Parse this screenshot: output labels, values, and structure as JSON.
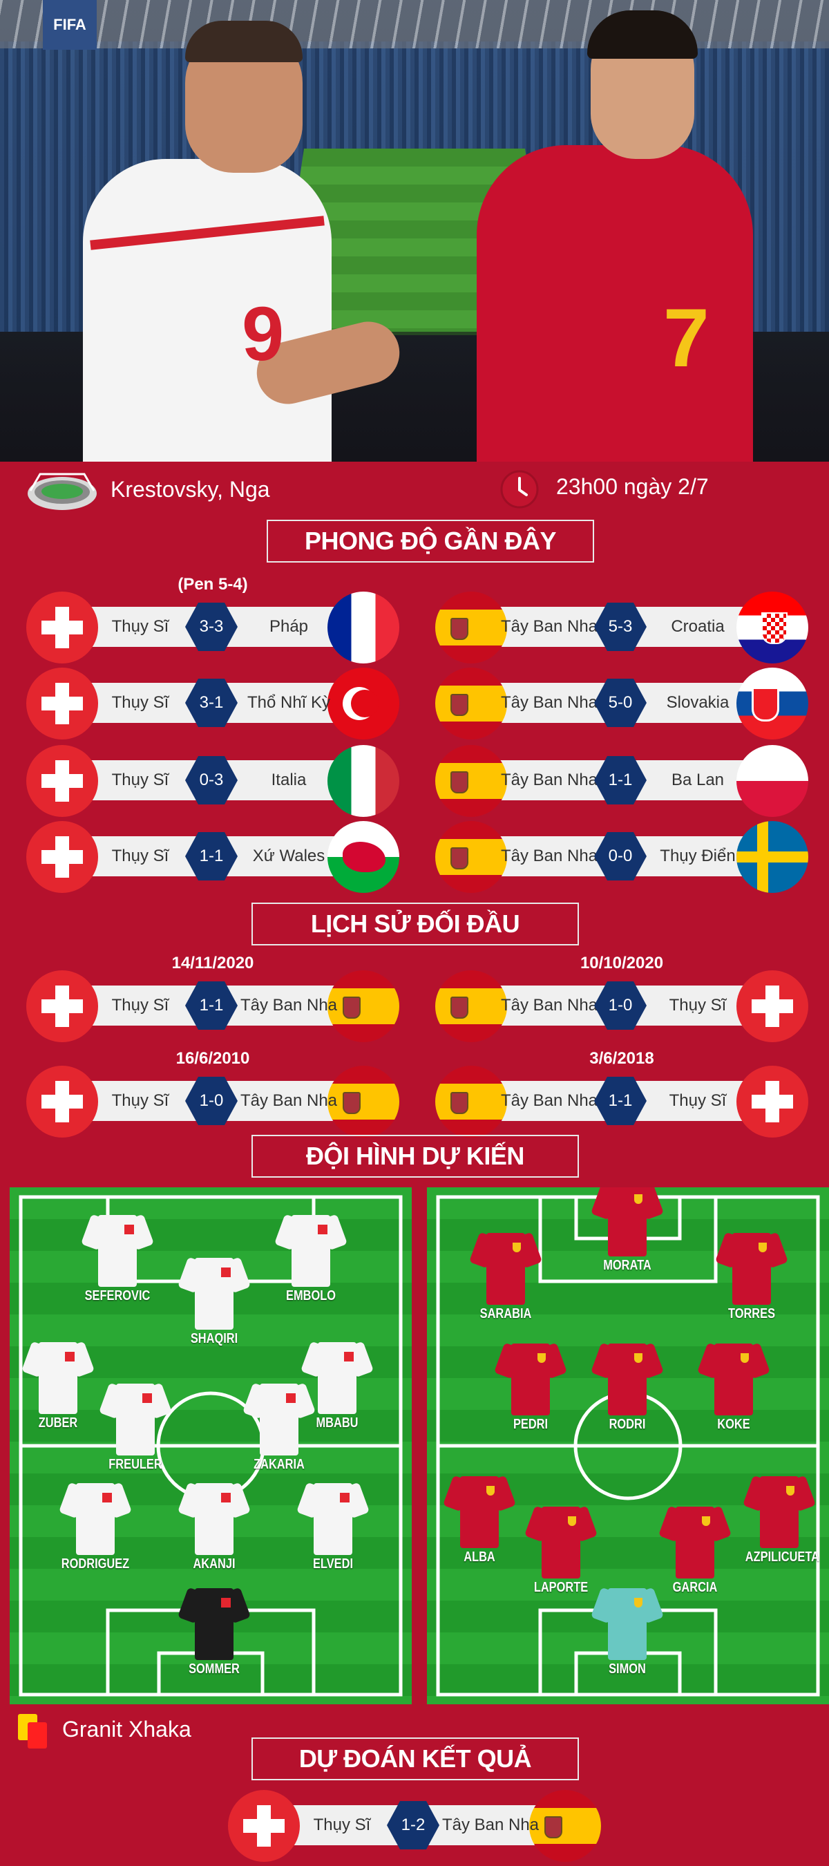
{
  "hero": {
    "badge_text": "FIFA",
    "left_shirt_number": "9",
    "right_shirt_number": "7"
  },
  "info": {
    "venue": "Krestovsky, Nga",
    "kickoff": "23h00 ngày 2/7"
  },
  "sections": {
    "form": "PHONG ĐỘ GẦN ĐÂY",
    "h2h": "LỊCH SỬ ĐỐI ĐẦU",
    "lineup": "ĐỘI HÌNH DỰ KIẾN",
    "prediction": "DỰ ĐOÁN KẾT QUẢ"
  },
  "recent_form": {
    "switzerland": [
      {
        "note": "(Pen 5-4)",
        "home": "Thụy Sĩ",
        "score": "3-3",
        "away": "Pháp",
        "home_flag": "sui",
        "away_flag": "fra"
      },
      {
        "note": "",
        "home": "Thụy Sĩ",
        "score": "3-1",
        "away": "Thổ Nhĩ Kỳ",
        "home_flag": "sui",
        "away_flag": "tur"
      },
      {
        "note": "",
        "home": "Thụy Sĩ",
        "score": "0-3",
        "away": "Italia",
        "home_flag": "sui",
        "away_flag": "ita"
      },
      {
        "note": "",
        "home": "Thụy Sĩ",
        "score": "1-1",
        "away": "Xứ Wales",
        "home_flag": "sui",
        "away_flag": "wal"
      }
    ],
    "spain": [
      {
        "note": "",
        "home": "Tây Ban Nha",
        "score": "5-3",
        "away": "Croatia",
        "home_flag": "esp",
        "away_flag": "cro"
      },
      {
        "note": "",
        "home": "Tây Ban Nha",
        "score": "5-0",
        "away": "Slovakia",
        "home_flag": "esp",
        "away_flag": "svk"
      },
      {
        "note": "",
        "home": "Tây Ban Nha",
        "score": "1-1",
        "away": "Ba Lan",
        "home_flag": "esp",
        "away_flag": "pol"
      },
      {
        "note": "",
        "home": "Tây Ban Nha",
        "score": "0-0",
        "away": "Thụy Điển",
        "home_flag": "esp",
        "away_flag": "swe"
      }
    ]
  },
  "head_to_head": [
    {
      "date": "14/11/2020",
      "home": "Thụy Sĩ",
      "score": "1-1",
      "away": "Tây Ban Nha",
      "home_flag": "sui",
      "away_flag": "esp"
    },
    {
      "date": "10/10/2020",
      "home": "Tây Ban Nha",
      "score": "1-0",
      "away": "Thụy Sĩ",
      "home_flag": "esp",
      "away_flag": "sui"
    },
    {
      "date": "16/6/2010",
      "home": "Thụy Sĩ",
      "score": "1-0",
      "away": "Tây Ban Nha",
      "home_flag": "sui",
      "away_flag": "esp"
    },
    {
      "date": "3/6/2018",
      "home": "Tây Ban Nha",
      "score": "1-1",
      "away": "Thụy Sĩ",
      "home_flag": "esp",
      "away_flag": "sui"
    }
  ],
  "lineups": {
    "switzerland": {
      "kit_color": "#f5f5f5",
      "players": [
        "SEFEROVIC",
        "EMBOLO",
        "SHAQIRI",
        "ZUBER",
        "MBABU",
        "FREULER",
        "ZAKARIA",
        "RODRIGUEZ",
        "AKANJI",
        "ELVEDI",
        "SOMMER"
      ]
    },
    "spain": {
      "kit_color": "#c8102e",
      "players": [
        "MORATA",
        "SARABIA",
        "TORRES",
        "PEDRI",
        "RODRI",
        "KOKE",
        "ALBA",
        "AZPILICUETA",
        "LAPORTE",
        "GARCIA",
        "SIMON"
      ]
    }
  },
  "suspension": {
    "icon": "yellow-red-card-icon",
    "player": "Granit Xhaka"
  },
  "prediction": {
    "home": "Thụy Sĩ",
    "score": "1-2",
    "away": "Tây Ban Nha",
    "home_flag": "sui",
    "away_flag": "esp"
  },
  "colors": {
    "background": "#b5112d",
    "score_badge": "#12336e",
    "pitch": "#2aa934"
  }
}
